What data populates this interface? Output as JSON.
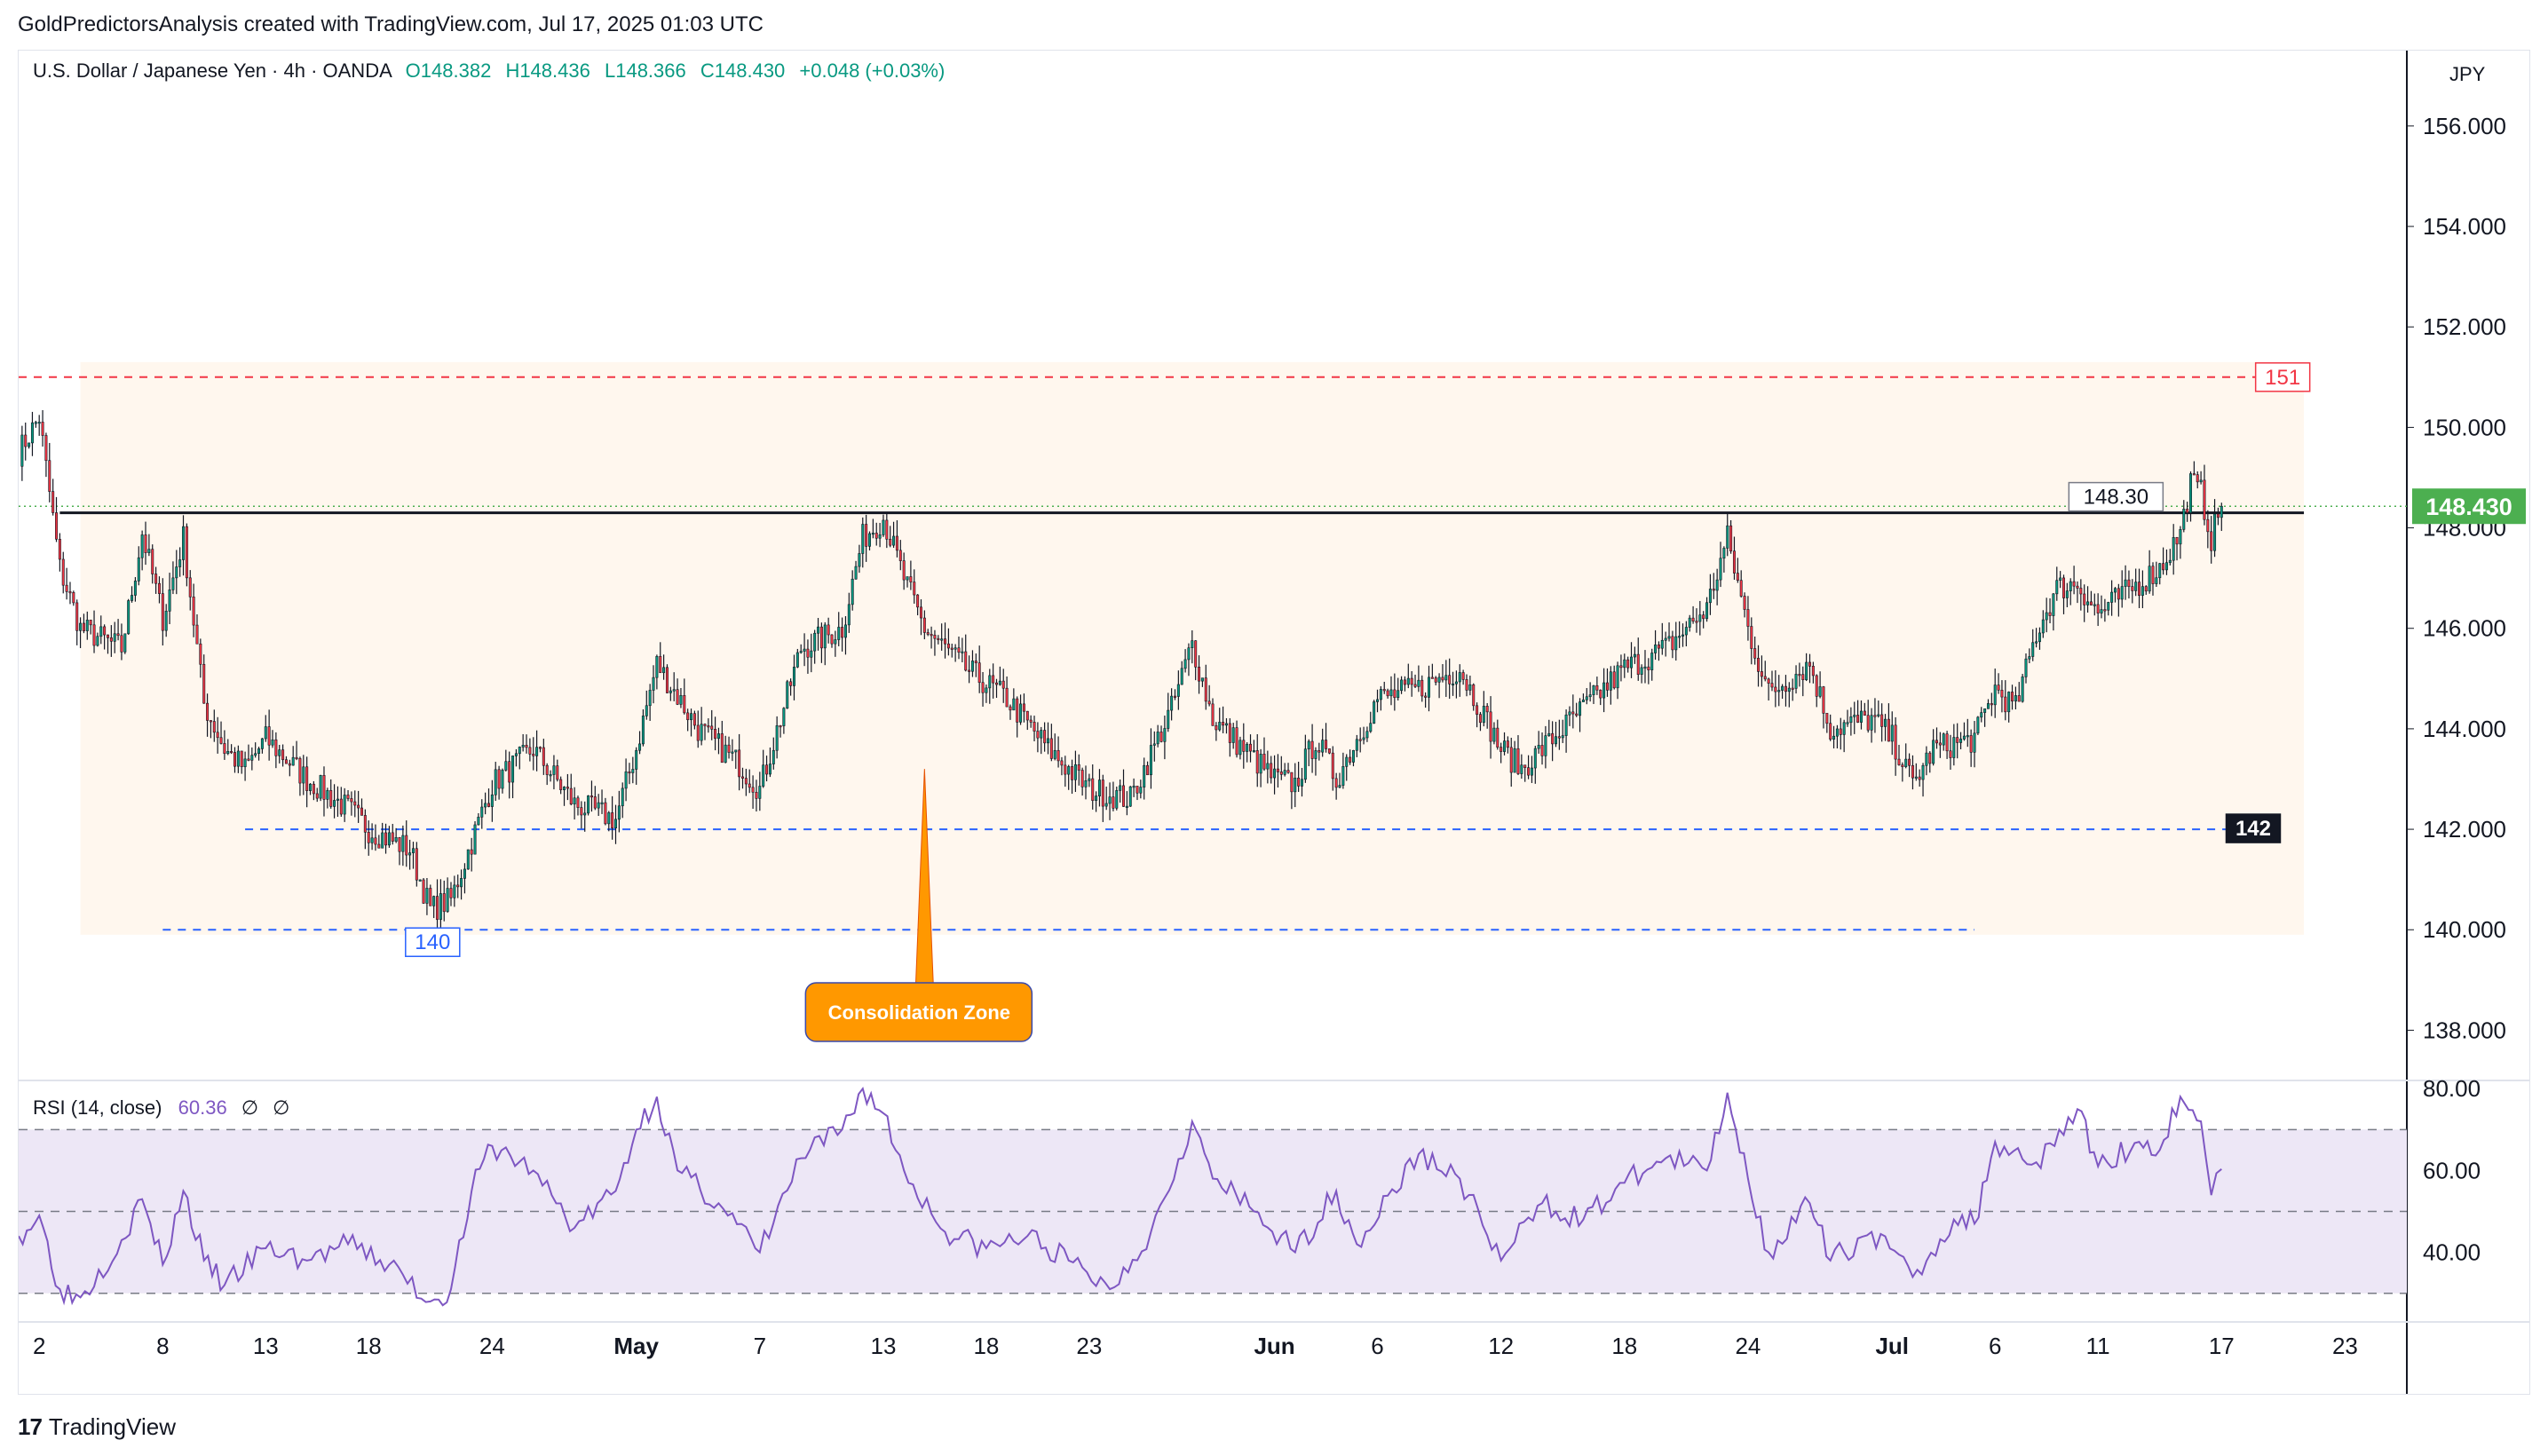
{
  "header": {
    "caption": "GoldPredictorsAnalysis created with TradingView.com, Jul 17, 2025 01:03 UTC"
  },
  "legend": {
    "symbol": "U.S. Dollar / Japanese Yen · 4h · OANDA",
    "open": "O148.382",
    "high": "H148.436",
    "low": "L148.366",
    "close": "C148.430",
    "change": "+0.048 (+0.03%)"
  },
  "currency": "JPY",
  "footer": {
    "brand": "TradingView",
    "logo_text": "17"
  },
  "colors": {
    "up": "#089981",
    "down": "#f23645",
    "zone_fill": "#fff7ee",
    "resistance_dash": "#f23645",
    "support_dash": "#2962ff",
    "rsi_line": "#7e57c2",
    "rsi_band": "#ede7f6",
    "callout": "#ff9800",
    "price_label": "#4caf50"
  },
  "chart_data": [
    {
      "type": "candlestick",
      "title": "U.S. Dollar / Japanese Yen · 4h · OANDA",
      "ylim": [
        137,
        157.5
      ],
      "y_ticks": [
        "156.000",
        "154.000",
        "152.000",
        "150.000",
        "148.000",
        "146.000",
        "144.000",
        "142.000",
        "140.000",
        "138.000"
      ],
      "x_ticks": [
        "2",
        "8",
        "13",
        "18",
        "24",
        "May",
        "7",
        "13",
        "18",
        "23",
        "Jun",
        "6",
        "12",
        "18",
        "24",
        "Jul",
        "6",
        "11",
        "17",
        "23"
      ],
      "x_tick_dates": [
        "2025-04-02",
        "2025-04-08",
        "2025-04-13",
        "2025-04-18",
        "2025-04-24",
        "2025-05-01",
        "2025-05-07",
        "2025-05-13",
        "2025-05-18",
        "2025-05-23",
        "2025-06-01",
        "2025-06-06",
        "2025-06-12",
        "2025-06-18",
        "2025-06-24",
        "2025-07-01",
        "2025-07-06",
        "2025-07-11",
        "2025-07-17",
        "2025-07-23"
      ],
      "x_range": [
        "2025-04-01",
        "2025-07-26"
      ],
      "close_path": [
        [
          "2025-04-01",
          149.5
        ],
        [
          "2025-04-02",
          150.2
        ],
        [
          "2025-04-03",
          147.2
        ],
        [
          "2025-04-04",
          146.0
        ],
        [
          "2025-04-06",
          145.6
        ],
        [
          "2025-04-07",
          147.9
        ],
        [
          "2025-04-08",
          146.2
        ],
        [
          "2025-04-09",
          147.8
        ],
        [
          "2025-04-10",
          144.5
        ],
        [
          "2025-04-11",
          143.6
        ],
        [
          "2025-04-12",
          143.2
        ],
        [
          "2025-04-13",
          143.8
        ],
        [
          "2025-04-15",
          143.0
        ],
        [
          "2025-04-17",
          142.4
        ],
        [
          "2025-04-18",
          142.0
        ],
        [
          "2025-04-20",
          141.6
        ],
        [
          "2025-04-21",
          140.4
        ],
        [
          "2025-04-22",
          140.6
        ],
        [
          "2025-04-24",
          142.9
        ],
        [
          "2025-04-26",
          143.6
        ],
        [
          "2025-04-28",
          142.5
        ],
        [
          "2025-04-30",
          142.2
        ],
        [
          "2025-05-01",
          143.6
        ],
        [
          "2025-05-02",
          145.3
        ],
        [
          "2025-05-04",
          144.0
        ],
        [
          "2025-05-06",
          143.3
        ],
        [
          "2025-05-07",
          142.8
        ],
        [
          "2025-05-09",
          145.6
        ],
        [
          "2025-05-11",
          146.0
        ],
        [
          "2025-05-12",
          147.8
        ],
        [
          "2025-05-13",
          148.2
        ],
        [
          "2025-05-14",
          147.0
        ],
        [
          "2025-05-15",
          146.0
        ],
        [
          "2025-05-17",
          145.2
        ],
        [
          "2025-05-19",
          144.6
        ],
        [
          "2025-05-21",
          143.6
        ],
        [
          "2025-05-22",
          143.2
        ],
        [
          "2025-05-23",
          142.8
        ],
        [
          "2025-05-25",
          142.6
        ],
        [
          "2025-05-27",
          144.4
        ],
        [
          "2025-05-28",
          145.7
        ],
        [
          "2025-05-29",
          144.2
        ],
        [
          "2025-05-30",
          143.8
        ],
        [
          "2025-06-01",
          143.0
        ],
        [
          "2025-06-02",
          142.9
        ],
        [
          "2025-06-03",
          143.8
        ],
        [
          "2025-06-04",
          143.0
        ],
        [
          "2025-06-06",
          144.6
        ],
        [
          "2025-06-08",
          144.8
        ],
        [
          "2025-06-10",
          145.2
        ],
        [
          "2025-06-12",
          143.6
        ],
        [
          "2025-06-13",
          143.2
        ],
        [
          "2025-06-15",
          144.0
        ],
        [
          "2025-06-18",
          145.2
        ],
        [
          "2025-06-20",
          145.6
        ],
        [
          "2025-06-22",
          146.4
        ],
        [
          "2025-06-23",
          147.8
        ],
        [
          "2025-06-24",
          146.0
        ],
        [
          "2025-06-25",
          144.7
        ],
        [
          "2025-06-27",
          145.3
        ],
        [
          "2025-06-28",
          144.0
        ],
        [
          "2025-06-30",
          144.2
        ],
        [
          "2025-07-01",
          143.8
        ],
        [
          "2025-07-02",
          142.9
        ],
        [
          "2025-07-03",
          143.6
        ],
        [
          "2025-07-05",
          143.8
        ],
        [
          "2025-07-06",
          144.8
        ],
        [
          "2025-07-07",
          144.4
        ],
        [
          "2025-07-08",
          145.9
        ],
        [
          "2025-07-09",
          146.8
        ],
        [
          "2025-07-10",
          146.9
        ],
        [
          "2025-07-11",
          146.3
        ],
        [
          "2025-07-12",
          146.6
        ],
        [
          "2025-07-14",
          147.2
        ],
        [
          "2025-07-15",
          147.9
        ],
        [
          "2025-07-15T12",
          148.9
        ],
        [
          "2025-07-16",
          148.7
        ],
        [
          "2025-07-16T12",
          147.8
        ],
        [
          "2025-07-17",
          148.43
        ]
      ],
      "resistance_line": {
        "value": 148.3,
        "from": "2025-04-03",
        "to": "2025-07-21"
      },
      "levels": [
        {
          "label": "151",
          "value": 151.0,
          "from": "2025-04-01",
          "to": "2025-07-20",
          "style": "red-dashed"
        },
        {
          "label": "142",
          "value": 142.0,
          "from": "2025-04-12",
          "to": "2025-07-19",
          "style": "blue-dashed"
        },
        {
          "label": "140",
          "value": 140.0,
          "from": "2025-04-08",
          "to": "2025-07-05",
          "style": "blue-dashed"
        }
      ],
      "zone": {
        "from": "2025-04-04",
        "to": "2025-07-21",
        "low": 139.9,
        "high": 151.3
      },
      "labels": {
        "resistance": "148.30",
        "level_151": "151",
        "level_142": "142",
        "level_140": "140",
        "last_price": "148.430",
        "callout": "Consolidation Zone"
      },
      "last_price": 148.43
    },
    {
      "type": "line",
      "title": "RSI (14, close)",
      "current_value": "60.36",
      "extra_values": [
        "∅",
        "∅"
      ],
      "ylim": [
        23,
        82
      ],
      "y_ticks": [
        "80.00",
        "60.00",
        "40.00"
      ],
      "bands": [
        70,
        50,
        30
      ],
      "series": [
        {
          "points": [
            [
              "2025-04-01",
              44
            ],
            [
              "2025-04-02",
              49
            ],
            [
              "2025-04-03",
              31
            ],
            [
              "2025-04-04",
              29
            ],
            [
              "2025-04-06",
              43
            ],
            [
              "2025-04-07",
              53
            ],
            [
              "2025-04-08",
              37
            ],
            [
              "2025-04-09",
              55
            ],
            [
              "2025-04-10",
              38
            ],
            [
              "2025-04-11",
              32
            ],
            [
              "2025-04-13",
              41
            ],
            [
              "2025-04-15",
              38
            ],
            [
              "2025-04-17",
              42
            ],
            [
              "2025-04-19",
              37
            ],
            [
              "2025-04-21",
              28
            ],
            [
              "2025-04-22",
              31
            ],
            [
              "2025-04-23",
              55
            ],
            [
              "2025-04-24",
              66
            ],
            [
              "2025-04-26",
              60
            ],
            [
              "2025-04-28",
              46
            ],
            [
              "2025-04-30",
              55
            ],
            [
              "2025-05-01",
              70
            ],
            [
              "2025-05-02",
              78
            ],
            [
              "2025-05-03",
              60
            ],
            [
              "2025-05-05",
              52
            ],
            [
              "2025-05-07",
              40
            ],
            [
              "2025-05-09",
              63
            ],
            [
              "2025-05-11",
              70
            ],
            [
              "2025-05-12",
              80
            ],
            [
              "2025-05-13",
              74
            ],
            [
              "2025-05-14",
              60
            ],
            [
              "2025-05-16",
              45
            ],
            [
              "2025-05-18",
              41
            ],
            [
              "2025-05-20",
              44
            ],
            [
              "2025-05-22",
              38
            ],
            [
              "2025-05-24",
              31
            ],
            [
              "2025-05-26",
              45
            ],
            [
              "2025-05-28",
              72
            ],
            [
              "2025-05-29",
              58
            ],
            [
              "2025-05-31",
              50
            ],
            [
              "2025-06-02",
              40
            ],
            [
              "2025-06-04",
              55
            ],
            [
              "2025-06-05",
              42
            ],
            [
              "2025-06-08",
              64
            ],
            [
              "2025-06-10",
              58
            ],
            [
              "2025-06-12",
              38
            ],
            [
              "2025-06-14",
              52
            ],
            [
              "2025-06-16",
              48
            ],
            [
              "2025-06-18",
              57
            ],
            [
              "2025-06-20",
              63
            ],
            [
              "2025-06-22",
              60
            ],
            [
              "2025-06-23",
              79
            ],
            [
              "2025-06-24",
              58
            ],
            [
              "2025-06-25",
              40
            ],
            [
              "2025-06-27",
              52
            ],
            [
              "2025-06-28",
              38
            ],
            [
              "2025-06-30",
              45
            ],
            [
              "2025-07-02",
              34
            ],
            [
              "2025-07-04",
              48
            ],
            [
              "2025-07-05",
              47
            ],
            [
              "2025-07-06",
              67
            ],
            [
              "2025-07-08",
              62
            ],
            [
              "2025-07-10",
              75
            ],
            [
              "2025-07-11",
              61
            ],
            [
              "2025-07-13",
              67
            ],
            [
              "2025-07-14",
              65
            ],
            [
              "2025-07-15",
              78
            ],
            [
              "2025-07-16",
              72
            ],
            [
              "2025-07-16T12",
              54
            ],
            [
              "2025-07-17",
              60.36
            ]
          ]
        }
      ]
    }
  ]
}
